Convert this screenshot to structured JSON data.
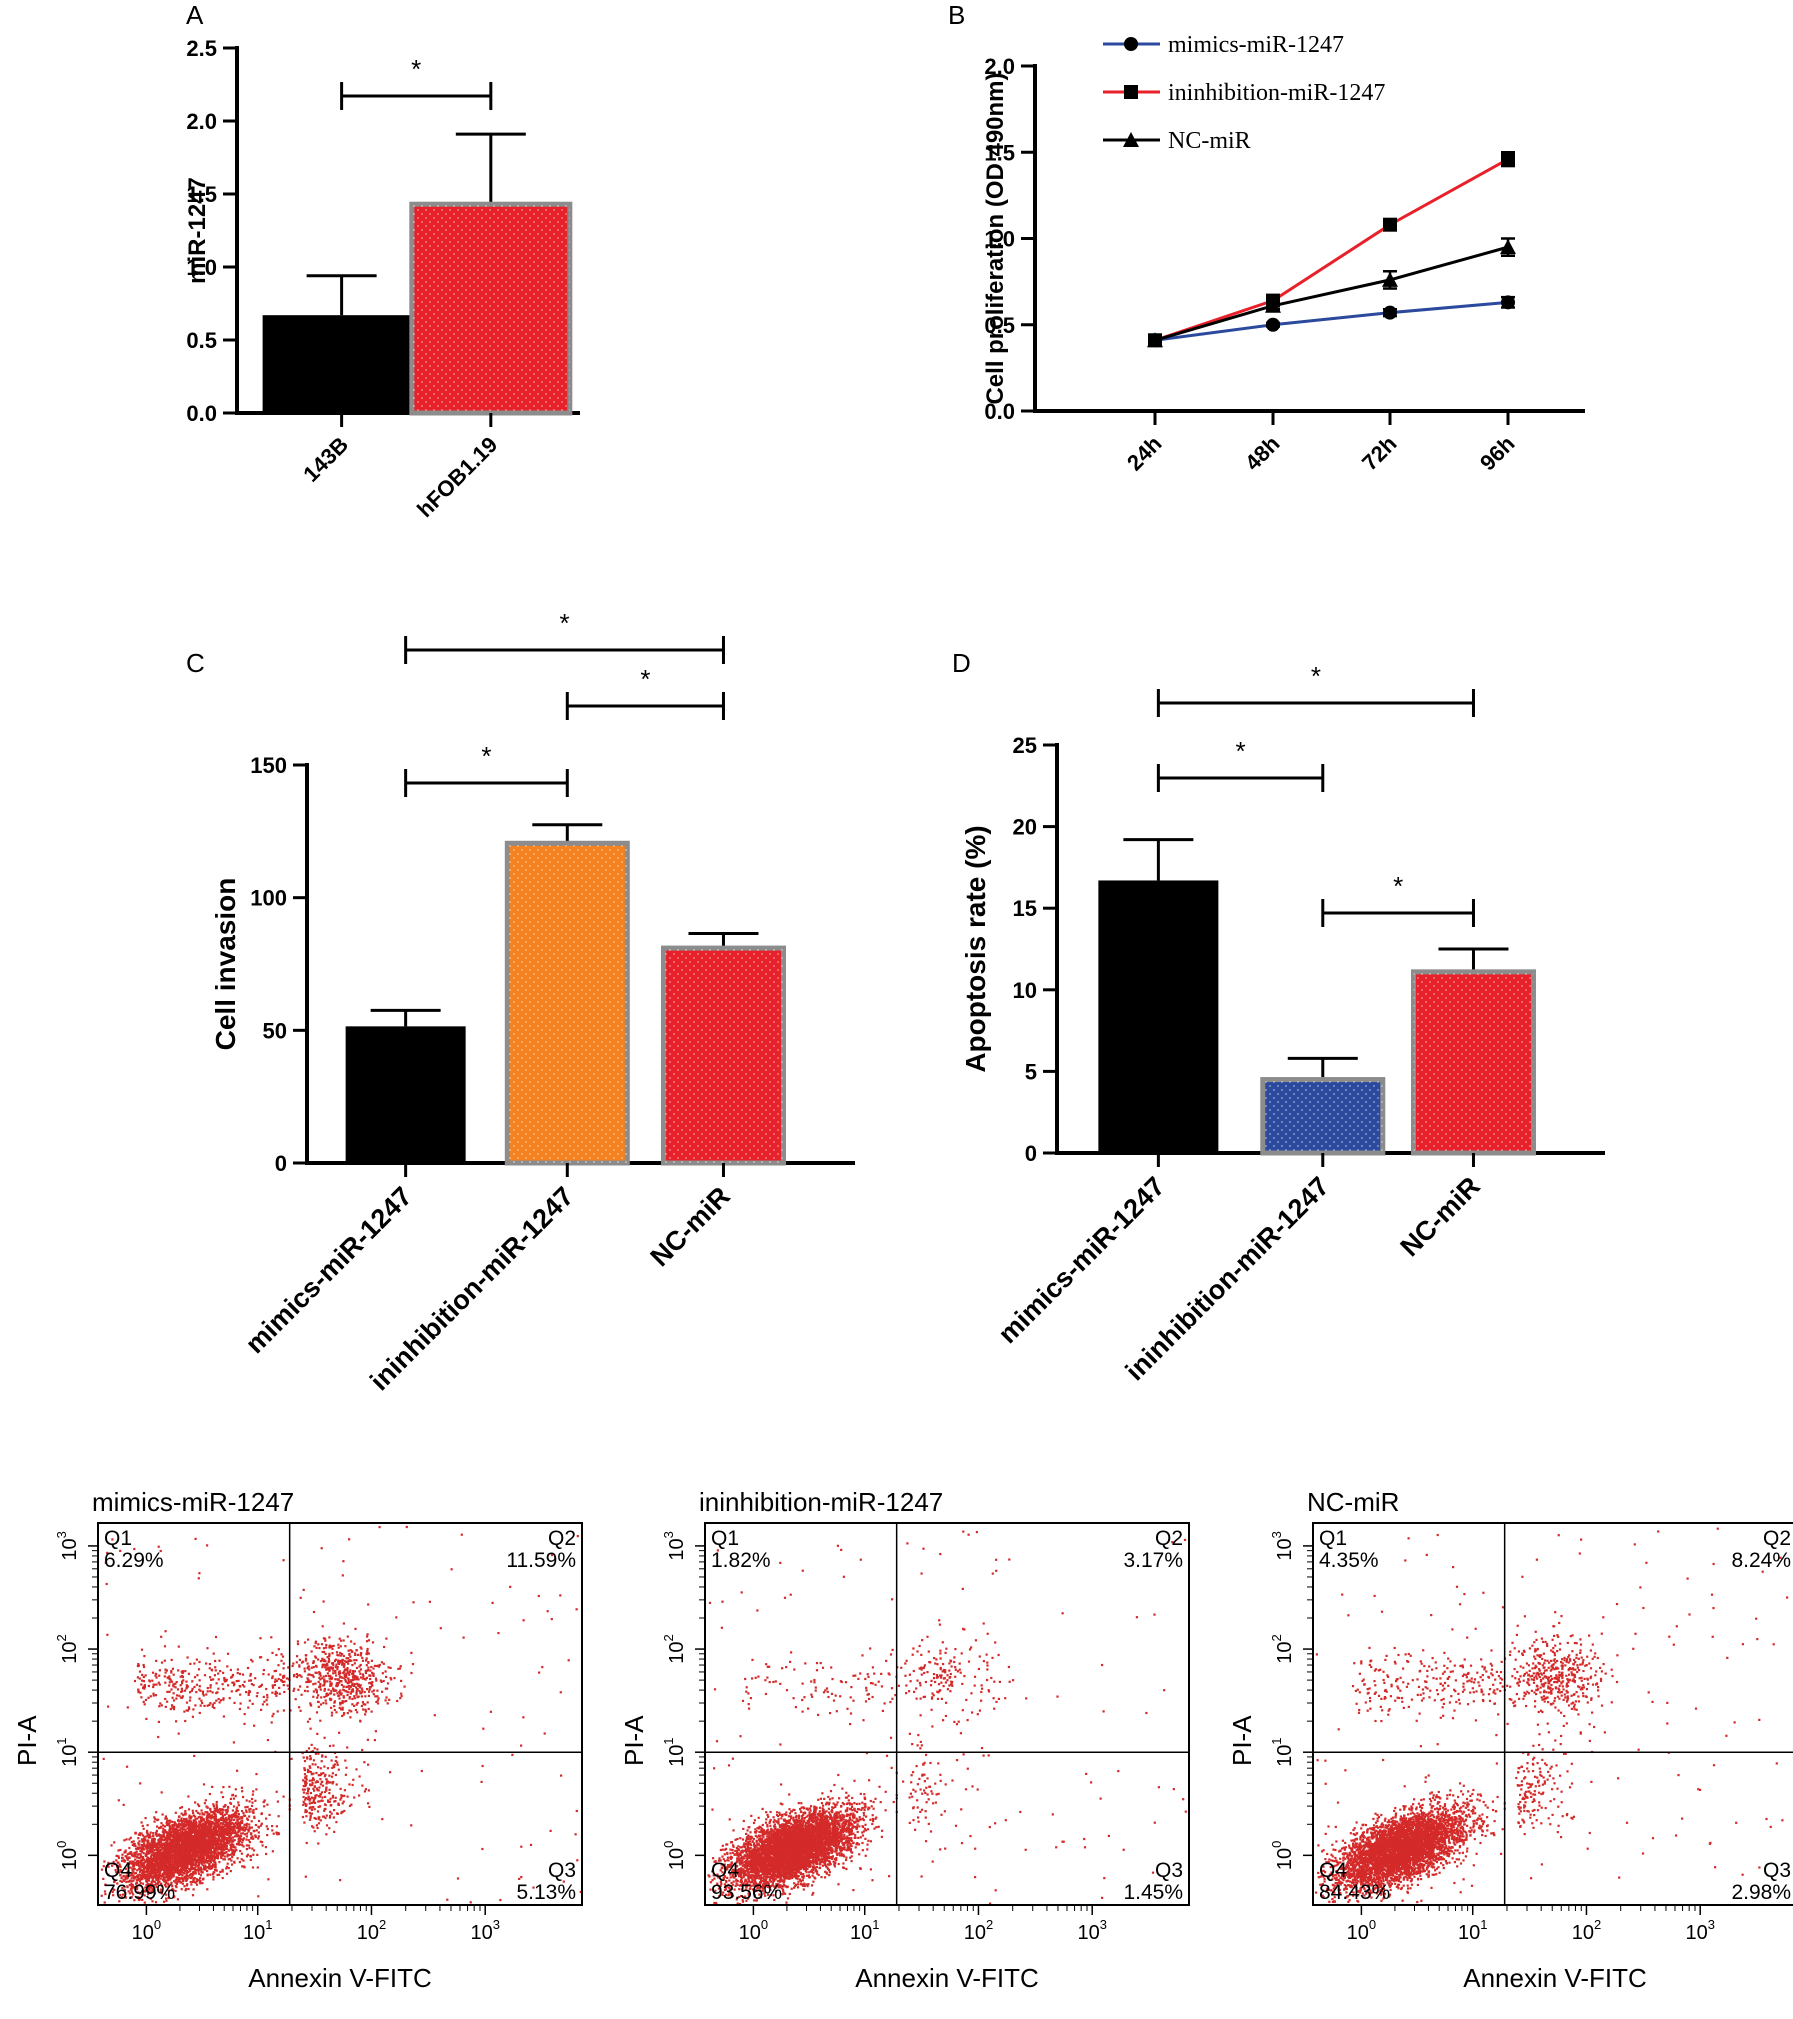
{
  "chart_data": [
    {
      "panel": "A",
      "type": "bar",
      "ylabel": "miR-1247",
      "ylim": [
        0,
        2.5
      ],
      "yticks": [
        "0.0",
        "0.5",
        "1.0",
        "1.5",
        "2.0",
        "2.5"
      ],
      "categories": [
        "143B",
        "hFOB1.19"
      ],
      "values": [
        0.67,
        1.43
      ],
      "errors": [
        0.27,
        0.48
      ],
      "colors": [
        "#000000",
        "#e8202a"
      ],
      "significance": [
        {
          "from": 0,
          "to": 1,
          "label": "*"
        }
      ]
    },
    {
      "panel": "B",
      "type": "line",
      "ylabel": "Cell proliferation (OD 490nm)",
      "ylim": [
        0,
        2.0
      ],
      "yticks": [
        "0.0",
        "0.5",
        "1.0",
        "1.5",
        "2.0"
      ],
      "categories": [
        "24h",
        "48h",
        "72h",
        "96h"
      ],
      "legend_position": "top-left",
      "series": [
        {
          "name": "mimics-miR-1247",
          "values": [
            0.41,
            0.5,
            0.57,
            0.63
          ],
          "errors": [
            0.01,
            0.01,
            0.02,
            0.03
          ],
          "color": "#2b4a9e",
          "marker": "circle"
        },
        {
          "name": "ininhibition-miR-1247",
          "values": [
            0.41,
            0.64,
            1.08,
            1.46
          ],
          "errors": [
            0.01,
            0.02,
            0.02,
            0.04
          ],
          "color": "#e8202a",
          "marker": "square"
        },
        {
          "name": "NC-miR",
          "values": [
            0.41,
            0.61,
            0.76,
            0.95
          ],
          "errors": [
            0.01,
            0.02,
            0.05,
            0.05
          ],
          "color": "#000000",
          "marker": "triangle"
        }
      ]
    },
    {
      "panel": "C",
      "type": "bar",
      "ylabel": "Cell invasion",
      "ylim": [
        0,
        150
      ],
      "yticks": [
        "0",
        "50",
        "100",
        "150"
      ],
      "categories": [
        "mimics-miR-1247",
        "ininhibition-miR-1247",
        "NC-miR"
      ],
      "values": [
        51.5,
        120.5,
        81
      ],
      "errors": [
        6,
        7,
        5.5
      ],
      "colors": [
        "#000000",
        "#f5821f",
        "#e8202a"
      ],
      "significance": [
        {
          "from": 0,
          "to": 2,
          "label": "*"
        },
        {
          "from": 1,
          "to": 2,
          "label": "*"
        },
        {
          "from": 0,
          "to": 1,
          "label": "*"
        }
      ]
    },
    {
      "panel": "D",
      "type": "bar",
      "ylabel": "Apoptosis rate (%)",
      "ylim": [
        0,
        25
      ],
      "yticks": [
        "0",
        "5",
        "10",
        "15",
        "20",
        "25"
      ],
      "categories": [
        "mimics-miR-1247",
        "ininhibition-miR-1247",
        "NC-miR"
      ],
      "values": [
        16.7,
        4.5,
        11.1
      ],
      "errors": [
        2.5,
        1.3,
        1.4
      ],
      "colors": [
        "#000000",
        "#2b4a9e",
        "#e8202a"
      ],
      "significance": [
        {
          "from": 0,
          "to": 2,
          "label": "*"
        },
        {
          "from": 0,
          "to": 1,
          "label": "*"
        },
        {
          "from": 1,
          "to": 2,
          "label": "*"
        }
      ]
    },
    {
      "type": "scatter",
      "title": "mimics-miR-1247",
      "xlabel": "Annexin V-FITC",
      "ylabel": "PI-A",
      "x_scale": "log",
      "y_scale": "log",
      "quadrants": {
        "Q1": "6.29%",
        "Q2": "11.59%",
        "Q3": "5.13%",
        "Q4": "76.99%"
      }
    },
    {
      "type": "scatter",
      "title": "ininhibition-miR-1247",
      "xlabel": "Annexin V-FITC",
      "ylabel": "PI-A",
      "x_scale": "log",
      "y_scale": "log",
      "quadrants": {
        "Q1": "1.82%",
        "Q2": "3.17%",
        "Q3": "1.45%",
        "Q4": "93.56%"
      }
    },
    {
      "type": "scatter",
      "title": "NC-miR",
      "xlabel": "Annexin V-FITC",
      "ylabel": "PI-A",
      "x_scale": "log",
      "y_scale": "log",
      "quadrants": {
        "Q1": "4.35%",
        "Q2": "8.24%",
        "Q3": "2.98%",
        "Q4": "84.43%"
      }
    }
  ],
  "flow_tick_base": "10",
  "flow_tick_exponents": [
    "0",
    "1",
    "2",
    "3"
  ],
  "quadrant_names": [
    "Q1",
    "Q2",
    "Q3",
    "Q4"
  ],
  "dot_color": "#d42a2a"
}
